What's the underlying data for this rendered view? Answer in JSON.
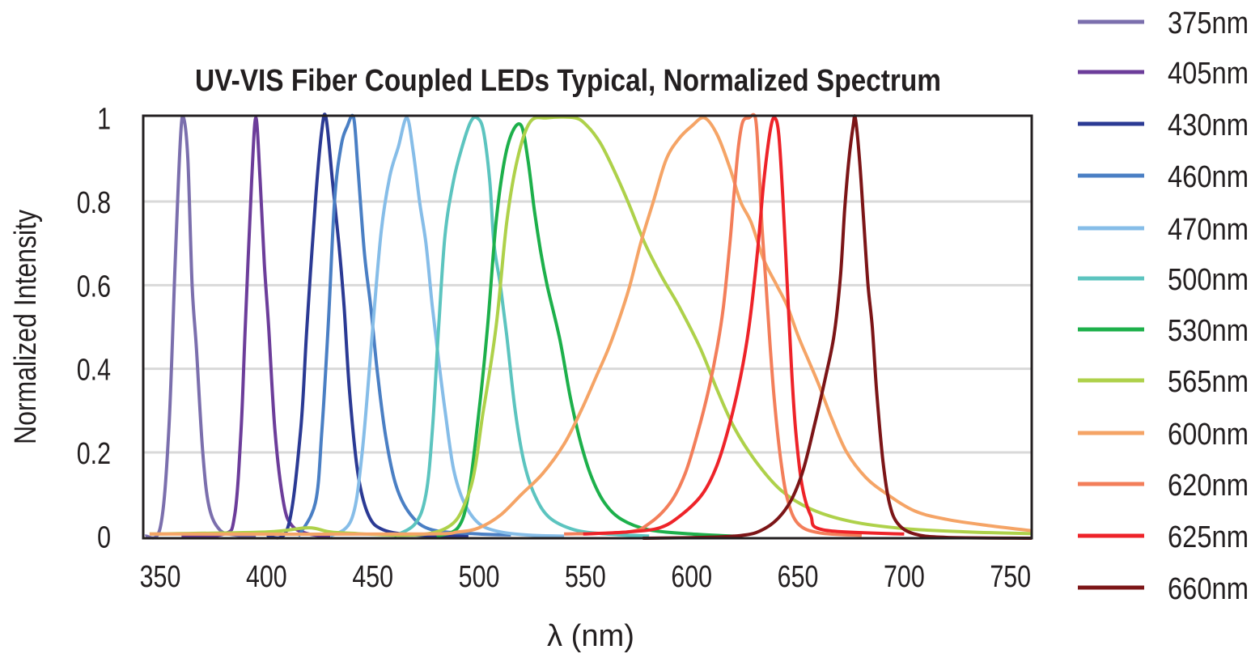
{
  "chart_data": {
    "type": "line",
    "title": "UV-VIS Fiber Coupled LEDs Typical, Normalized Spectrum",
    "xlabel": "λ (nm)",
    "ylabel": "Normalized Intensity",
    "xlim": [
      342,
      760
    ],
    "ylim": [
      -0.005,
      1.005
    ],
    "xticks": [
      350,
      400,
      450,
      500,
      550,
      600,
      650,
      700,
      750
    ],
    "yticks": [
      0,
      0.2,
      0.4,
      0.6,
      0.8,
      1
    ],
    "ytick_labels": [
      "0",
      "0.2",
      "0.4",
      "0.6",
      "0.8",
      "1"
    ],
    "grid": "horizontal",
    "legend_placement": "right",
    "series": [
      {
        "name": "375nm",
        "color": "#7b6fad",
        "points": [
          [
            343,
            0
          ],
          [
            350,
            0.02
          ],
          [
            354,
            0.25
          ],
          [
            357,
            0.65
          ],
          [
            359.5,
            0.95
          ],
          [
            361,
            1
          ],
          [
            363,
            0.9
          ],
          [
            365,
            0.6
          ],
          [
            367,
            0.45
          ],
          [
            370,
            0.2
          ],
          [
            373,
            0.07
          ],
          [
            378,
            0.015
          ],
          [
            385,
            0.003
          ],
          [
            395,
            0
          ]
        ]
      },
      {
        "name": "405nm",
        "color": "#6c3d9a",
        "points": [
          [
            360,
            0
          ],
          [
            380,
            0.005
          ],
          [
            385,
            0.05
          ],
          [
            388,
            0.25
          ],
          [
            390,
            0.5
          ],
          [
            393,
            0.85
          ],
          [
            395,
            1
          ],
          [
            397,
            0.85
          ],
          [
            399,
            0.65
          ],
          [
            401,
            0.5
          ],
          [
            404,
            0.25
          ],
          [
            408,
            0.08
          ],
          [
            412,
            0.025
          ],
          [
            420,
            0.005
          ],
          [
            430,
            0
          ]
        ]
      },
      {
        "name": "430nm",
        "color": "#2b3a94",
        "points": [
          [
            400,
            0
          ],
          [
            410,
            0.02
          ],
          [
            416,
            0.25
          ],
          [
            419,
            0.5
          ],
          [
            423,
            0.8
          ],
          [
            426,
            0.97
          ],
          [
            428,
            1
          ],
          [
            431,
            0.85
          ],
          [
            434,
            0.7
          ],
          [
            436.5,
            0.55
          ],
          [
            439,
            0.35
          ],
          [
            443,
            0.15
          ],
          [
            448,
            0.05
          ],
          [
            455,
            0.015
          ],
          [
            470,
            0.003
          ],
          [
            495,
            0
          ]
        ]
      },
      {
        "name": "460nm",
        "color": "#4a7fc4",
        "points": [
          [
            415,
            0
          ],
          [
            423,
            0.08
          ],
          [
            426,
            0.25
          ],
          [
            429,
            0.5
          ],
          [
            432,
            0.8
          ],
          [
            435,
            0.93
          ],
          [
            438,
            0.98
          ],
          [
            441,
            1
          ],
          [
            443,
            0.88
          ],
          [
            446,
            0.68
          ],
          [
            449,
            0.55
          ],
          [
            452,
            0.4
          ],
          [
            456,
            0.24
          ],
          [
            461,
            0.12
          ],
          [
            468,
            0.05
          ],
          [
            478,
            0.015
          ],
          [
            500,
            0.005
          ],
          [
            515,
            0.003
          ]
        ]
      },
      {
        "name": "470nm",
        "color": "#86bde8",
        "points": [
          [
            430,
            0
          ],
          [
            440,
            0.04
          ],
          [
            445,
            0.2
          ],
          [
            450,
            0.5
          ],
          [
            454,
            0.73
          ],
          [
            458,
            0.86
          ],
          [
            462,
            0.93
          ],
          [
            466,
            1
          ],
          [
            469,
            0.92
          ],
          [
            472,
            0.8
          ],
          [
            475,
            0.7
          ],
          [
            478,
            0.55
          ],
          [
            481,
            0.42
          ],
          [
            484,
            0.3
          ],
          [
            488,
            0.16
          ],
          [
            493,
            0.08
          ],
          [
            500,
            0.03
          ],
          [
            510,
            0.01
          ],
          [
            525,
            0.002
          ],
          [
            540,
            0
          ]
        ]
      },
      {
        "name": "500nm",
        "color": "#5cc4bf",
        "points": [
          [
            460,
            0
          ],
          [
            470,
            0.03
          ],
          [
            475,
            0.1
          ],
          [
            478,
            0.25
          ],
          [
            481,
            0.5
          ],
          [
            484,
            0.72
          ],
          [
            488,
            0.85
          ],
          [
            492,
            0.93
          ],
          [
            496,
            0.99
          ],
          [
            499,
            1
          ],
          [
            502,
            0.97
          ],
          [
            505,
            0.85
          ],
          [
            507,
            0.7
          ],
          [
            510,
            0.6
          ],
          [
            513,
            0.48
          ],
          [
            517,
            0.3
          ],
          [
            521,
            0.18
          ],
          [
            526,
            0.1
          ],
          [
            533,
            0.045
          ],
          [
            545,
            0.015
          ],
          [
            560,
            0.005
          ],
          [
            580,
            0
          ]
        ]
      },
      {
        "name": "530nm",
        "color": "#1db04b",
        "points": [
          [
            480,
            0
          ],
          [
            490,
            0.02
          ],
          [
            495,
            0.1
          ],
          [
            500,
            0.3
          ],
          [
            504,
            0.5
          ],
          [
            508,
            0.75
          ],
          [
            512,
            0.9
          ],
          [
            516,
            0.97
          ],
          [
            520,
            0.98
          ],
          [
            523,
            0.9
          ],
          [
            526,
            0.78
          ],
          [
            529,
            0.68
          ],
          [
            532,
            0.6
          ],
          [
            538,
            0.47
          ],
          [
            543,
            0.33
          ],
          [
            548,
            0.22
          ],
          [
            553,
            0.14
          ],
          [
            559,
            0.08
          ],
          [
            567,
            0.04
          ],
          [
            580,
            0.015
          ],
          [
            600,
            0.005
          ],
          [
            620,
            0
          ]
        ]
      },
      {
        "name": "565nm",
        "color": "#aed14a",
        "points": [
          [
            345,
            0.005
          ],
          [
            400,
            0.01
          ],
          [
            420,
            0.02
          ],
          [
            435,
            0.008
          ],
          [
            480,
            0.01
          ],
          [
            495,
            0.1
          ],
          [
            502,
            0.3
          ],
          [
            508,
            0.5
          ],
          [
            513,
            0.75
          ],
          [
            518,
            0.9
          ],
          [
            524,
            0.99
          ],
          [
            532,
            1
          ],
          [
            545,
            1
          ],
          [
            551,
            0.98
          ],
          [
            557,
            0.94
          ],
          [
            563,
            0.88
          ],
          [
            570,
            0.8
          ],
          [
            578,
            0.7
          ],
          [
            586,
            0.62
          ],
          [
            594,
            0.55
          ],
          [
            604,
            0.45
          ],
          [
            612,
            0.35
          ],
          [
            620,
            0.26
          ],
          [
            630,
            0.18
          ],
          [
            642,
            0.11
          ],
          [
            656,
            0.065
          ],
          [
            675,
            0.035
          ],
          [
            700,
            0.018
          ],
          [
            730,
            0.01
          ],
          [
            760,
            0.006
          ]
        ]
      },
      {
        "name": "600nm",
        "color": "#f5a466",
        "points": [
          [
            345,
            0.005
          ],
          [
            470,
            0.005
          ],
          [
            490,
            0.01
          ],
          [
            500,
            0.02
          ],
          [
            510,
            0.05
          ],
          [
            520,
            0.1
          ],
          [
            530,
            0.15
          ],
          [
            540,
            0.22
          ],
          [
            548,
            0.3
          ],
          [
            555,
            0.38
          ],
          [
            561,
            0.45
          ],
          [
            566,
            0.52
          ],
          [
            571,
            0.6
          ],
          [
            576,
            0.7
          ],
          [
            582,
            0.8
          ],
          [
            588,
            0.9
          ],
          [
            594,
            0.95
          ],
          [
            600,
            0.98
          ],
          [
            606,
            1
          ],
          [
            612,
            0.96
          ],
          [
            618,
            0.88
          ],
          [
            623,
            0.8
          ],
          [
            628,
            0.75
          ],
          [
            634,
            0.66
          ],
          [
            640,
            0.6
          ],
          [
            645,
            0.55
          ],
          [
            650,
            0.48
          ],
          [
            655,
            0.42
          ],
          [
            660,
            0.36
          ],
          [
            666,
            0.28
          ],
          [
            673,
            0.2
          ],
          [
            682,
            0.14
          ],
          [
            692,
            0.1
          ],
          [
            705,
            0.06
          ],
          [
            720,
            0.04
          ],
          [
            740,
            0.025
          ],
          [
            760,
            0.013
          ]
        ]
      },
      {
        "name": "620nm",
        "color": "#f37e5a",
        "points": [
          [
            540,
            0.005
          ],
          [
            570,
            0.01
          ],
          [
            580,
            0.03
          ],
          [
            590,
            0.08
          ],
          [
            597,
            0.15
          ],
          [
            603,
            0.25
          ],
          [
            608,
            0.35
          ],
          [
            612,
            0.45
          ],
          [
            615,
            0.55
          ],
          [
            618,
            0.7
          ],
          [
            620,
            0.82
          ],
          [
            622,
            0.93
          ],
          [
            624,
            0.99
          ],
          [
            627,
            1
          ],
          [
            630,
            1
          ],
          [
            631.5,
            0.9
          ],
          [
            633,
            0.75
          ],
          [
            635,
            0.6
          ],
          [
            637,
            0.45
          ],
          [
            639,
            0.32
          ],
          [
            642,
            0.18
          ],
          [
            645,
            0.09
          ],
          [
            650,
            0.03
          ],
          [
            660,
            0.008
          ],
          [
            680,
            0.002
          ]
        ]
      },
      {
        "name": "625nm",
        "color": "#ee2329",
        "points": [
          [
            549,
            0.005
          ],
          [
            570,
            0.01
          ],
          [
            585,
            0.02
          ],
          [
            595,
            0.05
          ],
          [
            605,
            0.1
          ],
          [
            612,
            0.17
          ],
          [
            618,
            0.27
          ],
          [
            623,
            0.38
          ],
          [
            627,
            0.5
          ],
          [
            631,
            0.68
          ],
          [
            634,
            0.85
          ],
          [
            637,
            0.97
          ],
          [
            639,
            1
          ],
          [
            641,
            0.96
          ],
          [
            643,
            0.8
          ],
          [
            645,
            0.6
          ],
          [
            647,
            0.4
          ],
          [
            649,
            0.25
          ],
          [
            652,
            0.12
          ],
          [
            656,
            0.05
          ],
          [
            662,
            0.015
          ],
          [
            700,
            0.005
          ]
        ]
      },
      {
        "name": "660nm",
        "color": "#7c1517",
        "points": [
          [
            577,
            -0.005
          ],
          [
            620,
            0
          ],
          [
            635,
            0.02
          ],
          [
            645,
            0.07
          ],
          [
            652,
            0.15
          ],
          [
            658,
            0.27
          ],
          [
            663,
            0.38
          ],
          [
            667,
            0.48
          ],
          [
            670,
            0.62
          ],
          [
            672,
            0.78
          ],
          [
            674,
            0.9
          ],
          [
            676,
            0.98
          ],
          [
            677,
            1
          ],
          [
            679,
            0.9
          ],
          [
            681,
            0.75
          ],
          [
            683,
            0.6
          ],
          [
            685,
            0.5
          ],
          [
            687,
            0.35
          ],
          [
            690,
            0.18
          ],
          [
            693,
            0.08
          ],
          [
            697,
            0.03
          ],
          [
            705,
            0.005
          ],
          [
            720,
            -0.003
          ],
          [
            760,
            -0.005
          ]
        ]
      }
    ]
  }
}
